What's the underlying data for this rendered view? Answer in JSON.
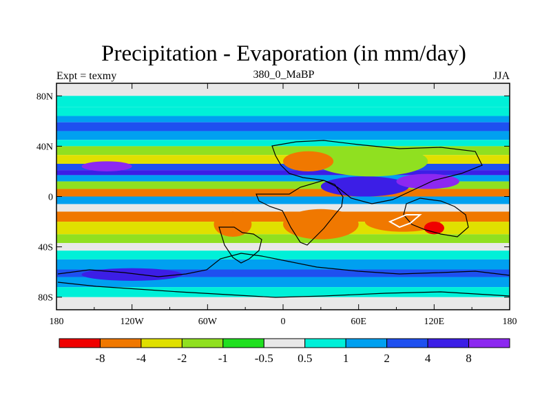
{
  "title": "Precipitation - Evaporation (in mm/day)",
  "subtitle": "380_0_MaBP",
  "left_label": "Expt = texmy",
  "right_label": "JJA",
  "chart_data": {
    "type": "heatmap",
    "title": "Precipitation - Evaporation (in mm/day)",
    "subtitle": "380_0_MaBP",
    "experiment": "Expt = texmy",
    "season": "JJA",
    "x_ticks": [
      {
        "value": -180,
        "label": "180"
      },
      {
        "value": -120,
        "label": "120W"
      },
      {
        "value": -60,
        "label": "60W"
      },
      {
        "value": 0,
        "label": "0"
      },
      {
        "value": 60,
        "label": "60E"
      },
      {
        "value": 120,
        "label": "120E"
      },
      {
        "value": 180,
        "label": "180"
      }
    ],
    "y_ticks": [
      {
        "value": 80,
        "label": "80N"
      },
      {
        "value": 40,
        "label": "40N"
      },
      {
        "value": 0,
        "label": "0"
      },
      {
        "value": -40,
        "label": "40S"
      },
      {
        "value": -80,
        "label": "80S"
      }
    ],
    "xlim": [
      -180,
      180
    ],
    "ylim": [
      -90,
      90
    ],
    "contour_levels": [
      "-8",
      "-4",
      "-2",
      "-1",
      "-0.5",
      "0.5",
      "1",
      "2",
      "4",
      "8"
    ],
    "colors": [
      "#f00000",
      "#f07800",
      "#e0e000",
      "#90e020",
      "#20e020",
      "#e8e8e8",
      "#00f0d8",
      "#00a0f0",
      "#1e50f0",
      "#3c1ee6",
      "#8c28f0"
    ],
    "zonal_bands": [
      {
        "lat_max": 90,
        "lat_min": 80,
        "class": 5
      },
      {
        "lat_max": 80,
        "lat_min": 71,
        "class": 6
      },
      {
        "lat_max": 71,
        "lat_min": 64,
        "class": 6
      },
      {
        "lat_max": 64,
        "lat_min": 59,
        "class": 7
      },
      {
        "lat_max": 59,
        "lat_min": 52,
        "class": 8
      },
      {
        "lat_max": 52,
        "lat_min": 45,
        "class": 7
      },
      {
        "lat_max": 45,
        "lat_min": 40,
        "class": 6
      },
      {
        "lat_max": 40,
        "lat_min": 33,
        "class": 3
      },
      {
        "lat_max": 33,
        "lat_min": 26,
        "class": 2
      },
      {
        "lat_max": 26,
        "lat_min": 21,
        "class": 8
      },
      {
        "lat_max": 21,
        "lat_min": 17,
        "class": 9
      },
      {
        "lat_max": 17,
        "lat_min": 12,
        "class": 7
      },
      {
        "lat_max": 12,
        "lat_min": 6,
        "class": 3
      },
      {
        "lat_max": 6,
        "lat_min": 0,
        "class": 1
      },
      {
        "lat_max": 0,
        "lat_min": -6,
        "class": 7
      },
      {
        "lat_max": -6,
        "lat_min": -12,
        "class": 5
      },
      {
        "lat_max": -12,
        "lat_min": -20,
        "class": 1
      },
      {
        "lat_max": -20,
        "lat_min": -30,
        "class": 2
      },
      {
        "lat_max": -30,
        "lat_min": -37,
        "class": 3
      },
      {
        "lat_max": -37,
        "lat_min": -43,
        "class": 5
      },
      {
        "lat_max": -43,
        "lat_min": -50,
        "class": 6
      },
      {
        "lat_max": -50,
        "lat_min": -58,
        "class": 7
      },
      {
        "lat_max": -58,
        "lat_min": -64,
        "class": 8
      },
      {
        "lat_max": -64,
        "lat_min": -72,
        "class": 7
      },
      {
        "lat_max": -72,
        "lat_min": -80,
        "class": 6
      },
      {
        "lat_max": -80,
        "lat_min": -90,
        "class": 5
      }
    ],
    "regional_features": [
      {
        "lon": 65,
        "lat": 8,
        "rlon": 35,
        "rlat": 8,
        "class": 9
      },
      {
        "lon": 115,
        "lat": 12,
        "rlon": 25,
        "rlat": 6,
        "class": 10
      },
      {
        "lon": 70,
        "lat": 28,
        "rlon": 45,
        "rlat": 12,
        "class": 3
      },
      {
        "lon": 20,
        "lat": 28,
        "rlon": 20,
        "rlat": 8,
        "class": 1
      },
      {
        "lon": 30,
        "lat": -22,
        "rlon": 30,
        "rlat": 12,
        "class": 1
      },
      {
        "lon": 95,
        "lat": -20,
        "rlon": 30,
        "rlat": 8,
        "class": 1
      },
      {
        "lon": 120,
        "lat": -25,
        "rlon": 8,
        "rlat": 5,
        "class": 0
      },
      {
        "lon": -140,
        "lat": 24,
        "rlon": 20,
        "rlat": 4,
        "class": 10
      },
      {
        "lon": -40,
        "lat": -22,
        "rlon": 15,
        "rlat": 10,
        "class": 1
      },
      {
        "lon": -120,
        "lat": -62,
        "rlon": 40,
        "rlat": 5,
        "class": 9
      }
    ]
  }
}
